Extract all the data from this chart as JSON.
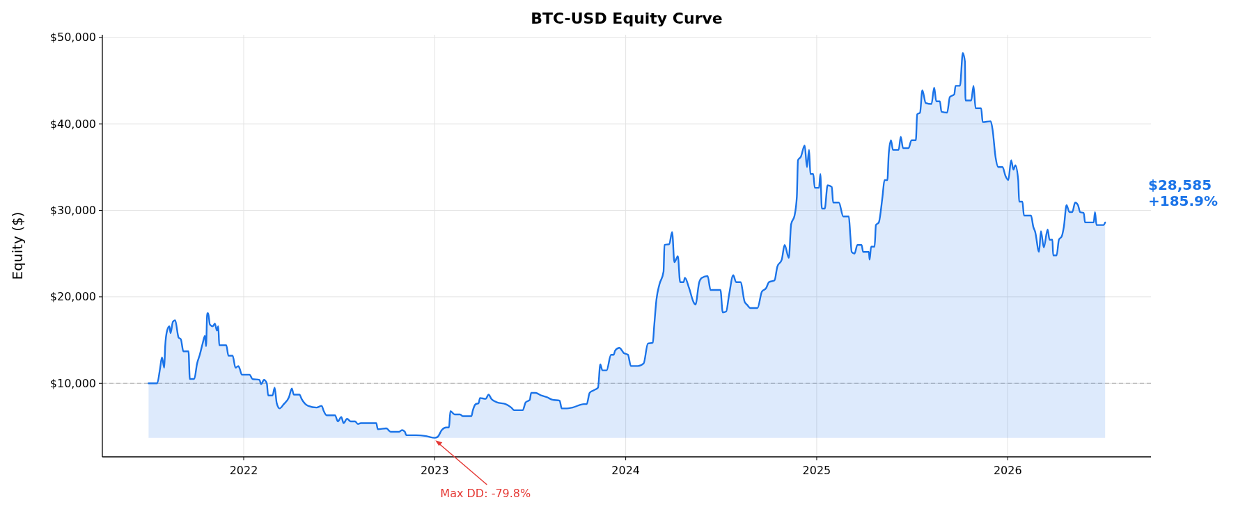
{
  "chart_data": {
    "type": "area",
    "title": "BTC-USD Equity Curve",
    "ylabel": "Equity ($)",
    "xlim": [
      2021.26,
      2026.75
    ],
    "ylim": [
      1500,
      50300
    ],
    "xticks": [
      2022,
      2023,
      2024,
      2025,
      2026
    ],
    "yticks": [
      {
        "value": 10000,
        "label": "$10,000"
      },
      {
        "value": 20000,
        "label": "$20,000"
      },
      {
        "value": 30000,
        "label": "$30,000"
      },
      {
        "value": 40000,
        "label": "$40,000"
      },
      {
        "value": 50000,
        "label": "$50,000"
      }
    ],
    "grid": true,
    "line_style": "solid",
    "ref_lines": [
      {
        "axis": "y",
        "value": 10000,
        "color": "#b0b0b0",
        "line_style": "dashed"
      }
    ],
    "annotations": [
      {
        "text": "Max DD: -79.8%",
        "x": 2023.0,
        "y": 3650
      },
      "$28,585\n+185.9%"
    ],
    "series": [
      {
        "color": "#1a73e8",
        "x": [
          2021.502,
          2021.547,
          2021.562,
          2021.572,
          2021.584,
          2021.589,
          2021.599,
          2021.611,
          2021.617,
          2021.629,
          2021.641,
          2021.659,
          2021.671,
          2021.684,
          2021.711,
          2021.718,
          2021.741,
          2021.756,
          2021.77,
          2021.785,
          2021.797,
          2021.803,
          2021.809,
          2021.814,
          2021.823,
          2021.838,
          2021.849,
          2021.86,
          2021.867,
          2021.872,
          2021.909,
          2021.92,
          2021.942,
          2021.957,
          2021.972,
          2021.979,
          2021.99,
          2022.031,
          2022.046,
          2022.083,
          2022.091,
          2022.106,
          2022.121,
          2022.128,
          2022.151,
          2022.162,
          2022.173,
          2022.188,
          2022.21,
          2022.237,
          2022.252,
          2022.262,
          2022.292,
          2022.303,
          2022.337,
          2022.382,
          2022.408,
          2022.419,
          2022.434,
          2022.478,
          2022.493,
          2022.511,
          2022.523,
          2022.541,
          2022.56,
          2022.583,
          2022.598,
          2022.613,
          2022.694,
          2022.702,
          2022.747,
          2022.769,
          2022.814,
          2022.829,
          2022.844,
          2022.851,
          2022.903,
          2022.955,
          2023.0,
          2023.015,
          2023.037,
          2023.06,
          2023.075,
          2023.082,
          2023.104,
          2023.125,
          2023.133,
          2023.148,
          2023.192,
          2023.2,
          2023.215,
          2023.23,
          2023.237,
          2023.267,
          2023.282,
          2023.297,
          2023.326,
          2023.371,
          2023.401,
          2023.416,
          2023.461,
          2023.476,
          2023.498,
          2023.505,
          2023.528,
          2023.557,
          2023.587,
          2023.617,
          2023.654,
          2023.665,
          2023.692,
          2023.721,
          2023.781,
          2023.796,
          2023.811,
          2023.833,
          2023.855,
          2023.867,
          2023.878,
          2023.9,
          2023.923,
          2023.937,
          2023.945,
          2023.967,
          2023.99,
          2024.012,
          2024.027,
          2024.064,
          2024.094,
          2024.116,
          2024.142,
          2024.149,
          2024.161,
          2024.176,
          2024.198,
          2024.203,
          2024.228,
          2024.243,
          2024.255,
          2024.273,
          2024.285,
          2024.303,
          2024.31,
          2024.332,
          2024.355,
          2024.365,
          2024.385,
          2024.399,
          2024.429,
          2024.444,
          2024.496,
          2024.508,
          2024.526,
          2024.541,
          2024.563,
          2024.578,
          2024.601,
          2024.623,
          2024.635,
          2024.653,
          2024.69,
          2024.713,
          2024.735,
          2024.75,
          2024.779,
          2024.794,
          2024.817,
          2024.832,
          2024.854,
          2024.866,
          2024.884,
          2024.896,
          2024.902,
          2024.917,
          2024.937,
          2024.949,
          2024.96,
          2024.967,
          2024.982,
          2024.99,
          2025.012,
          2025.019,
          2025.027,
          2025.042,
          2025.057,
          2025.079,
          2025.086,
          2025.116,
          2025.139,
          2025.168,
          2025.176,
          2025.183,
          2025.198,
          2025.213,
          2025.235,
          2025.243,
          2025.273,
          2025.277,
          2025.285,
          2025.303,
          2025.31,
          2025.325,
          2025.344,
          2025.355,
          2025.37,
          2025.377,
          2025.389,
          2025.399,
          2025.429,
          2025.44,
          2025.452,
          2025.481,
          2025.496,
          2025.519,
          2025.526,
          2025.541,
          2025.553,
          2025.571,
          2025.601,
          2025.615,
          2025.626,
          2025.645,
          2025.653,
          2025.683,
          2025.697,
          2025.72,
          2025.727,
          2025.75,
          2025.765,
          2025.776,
          2025.779,
          2025.809,
          2025.821,
          2025.832,
          2025.861,
          2025.869,
          2025.911,
          2025.921,
          2025.936,
          2025.951,
          2025.973,
          2025.988,
          2026.003,
          2026.018,
          2026.03,
          2026.04,
          2026.055,
          2026.06,
          2026.077,
          2026.085,
          2026.122,
          2026.134,
          2026.144,
          2026.164,
          2026.174,
          2026.189,
          2026.209,
          2026.219,
          2026.234,
          2026.238,
          2026.256,
          2026.268,
          2026.283,
          2026.294,
          2026.308,
          2026.323,
          2026.338,
          2026.353,
          2026.368,
          2026.379,
          2026.398,
          2026.405,
          2026.45,
          2026.457,
          2026.465,
          2026.502,
          2026.51
        ],
        "values": [
          10000,
          10000,
          11700,
          13000,
          11800,
          14300,
          16100,
          16600,
          15800,
          17100,
          17300,
          15300,
          15100,
          13700,
          13700,
          10500,
          10500,
          12300,
          13300,
          14600,
          15500,
          14300,
          18100,
          18100,
          16800,
          16600,
          16900,
          16100,
          16600,
          14400,
          14400,
          13200,
          13200,
          11800,
          12000,
          11700,
          11000,
          11000,
          10500,
          10400,
          9900,
          10400,
          10000,
          8600,
          8600,
          9500,
          7700,
          7100,
          7600,
          8400,
          9400,
          8700,
          8700,
          8200,
          7400,
          7200,
          7400,
          6800,
          6300,
          6300,
          5600,
          6100,
          5400,
          5900,
          5600,
          5600,
          5300,
          5400,
          5400,
          4700,
          4800,
          4400,
          4400,
          4600,
          4400,
          4000,
          4000,
          3900,
          3700,
          3800,
          4600,
          4900,
          4900,
          6800,
          6400,
          6400,
          6400,
          6200,
          6200,
          6900,
          7600,
          7700,
          8300,
          8200,
          8700,
          8200,
          7800,
          7600,
          7200,
          6900,
          6900,
          7800,
          8100,
          8900,
          8900,
          8600,
          8400,
          8100,
          8000,
          7100,
          7100,
          7200,
          7600,
          7600,
          8900,
          9200,
          9500,
          12200,
          11500,
          11500,
          13300,
          13300,
          13800,
          14100,
          13500,
          13300,
          12000,
          12000,
          12300,
          14600,
          14700,
          16600,
          19700,
          21400,
          22900,
          26000,
          26100,
          27500,
          24000,
          24700,
          21700,
          21700,
          22200,
          21000,
          19400,
          19100,
          21700,
          22200,
          22400,
          20800,
          20800,
          18200,
          18300,
          20200,
          22500,
          21700,
          21700,
          19400,
          19100,
          18700,
          18700,
          20600,
          21000,
          21700,
          21900,
          23500,
          24300,
          26000,
          24500,
          28400,
          29400,
          31600,
          35800,
          36200,
          37500,
          35000,
          37000,
          34200,
          34200,
          32600,
          32600,
          34200,
          30200,
          30200,
          32900,
          32700,
          30900,
          30900,
          29300,
          29300,
          27100,
          25200,
          25000,
          26000,
          26000,
          25200,
          25200,
          24300,
          25800,
          25800,
          28300,
          28600,
          31500,
          33500,
          33500,
          36500,
          38100,
          37000,
          37000,
          38500,
          37200,
          37200,
          38100,
          38100,
          41100,
          41300,
          43900,
          42400,
          42300,
          44200,
          42600,
          42600,
          41400,
          41300,
          43100,
          43400,
          44400,
          44400,
          48200,
          47200,
          42700,
          42700,
          44400,
          41800,
          41800,
          40200,
          40300,
          39300,
          36200,
          35000,
          35000,
          34000,
          33500,
          35800,
          34700,
          35200,
          33500,
          31000,
          31000,
          29400,
          29400,
          28100,
          27500,
          25200,
          27600,
          25700,
          27800,
          26600,
          26600,
          24800,
          24800,
          26600,
          27000,
          28100,
          30600,
          29800,
          29800,
          30900,
          30600,
          29800,
          29700,
          28600,
          28600,
          29800,
          28300,
          28300,
          28600
        ]
      }
    ]
  }
}
